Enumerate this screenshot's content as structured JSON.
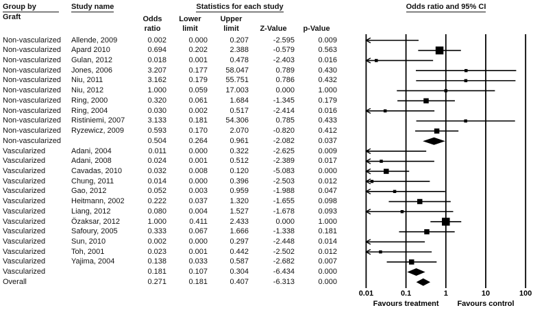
{
  "header": {
    "group_by": "Group by",
    "group_by_sub": "Graft",
    "study_name": "Study name",
    "stats_title": "Statistics for each study",
    "plot_title": "Odds ratio and 95% CI",
    "col_odds_l1": "Odds",
    "col_odds_l2": "ratio",
    "col_lower_l1": "Lower",
    "col_lower_l2": "limit",
    "col_upper_l1": "Upper",
    "col_upper_l2": "limit",
    "col_z": "Z-Value",
    "col_p": "p-Value"
  },
  "chart_data": {
    "type": "forest",
    "x_scale": "log",
    "x_ticks": [
      0.01,
      0.1,
      1,
      10,
      100
    ],
    "x_tick_labels": [
      "0.01",
      "0.1",
      "1",
      "10",
      "100"
    ],
    "xlim": [
      0.01,
      100
    ],
    "favours_left": "Favours treatment",
    "favours_right": "Favours control",
    "marker_color": "#000000",
    "rows": [
      {
        "group": "Non-vascularized",
        "study": "Allende, 2009",
        "odds_ratio": "0.002",
        "lower_limit": "0.000",
        "upper_limit": "0.207",
        "z_value": "-2.595",
        "p_value": "0.009",
        "kind": "study",
        "marker": "none"
      },
      {
        "group": "Non-vascularized",
        "study": "Apard 2010",
        "odds_ratio": "0.694",
        "lower_limit": "0.202",
        "upper_limit": "2.388",
        "z_value": "-0.579",
        "p_value": "0.563",
        "kind": "study",
        "marker": "large"
      },
      {
        "group": "Non-vascularized",
        "study": "Gulan, 2012",
        "odds_ratio": "0.018",
        "lower_limit": "0.001",
        "upper_limit": "0.478",
        "z_value": "-2.403",
        "p_value": "0.016",
        "kind": "study",
        "marker": "small"
      },
      {
        "group": "Non-vascularized",
        "study": "Jones, 2006",
        "odds_ratio": "3.207",
        "lower_limit": "0.177",
        "upper_limit": "58.047",
        "z_value": "0.789",
        "p_value": "0.430",
        "kind": "study",
        "marker": "small"
      },
      {
        "group": "Non-vascularized",
        "study": "Niu, 2011",
        "odds_ratio": "3.162",
        "lower_limit": "0.179",
        "upper_limit": "55.751",
        "z_value": "0.786",
        "p_value": "0.432",
        "kind": "study",
        "marker": "small"
      },
      {
        "group": "Non-vascularized",
        "study": "Niu, 2012",
        "odds_ratio": "1.000",
        "lower_limit": "0.059",
        "upper_limit": "17.003",
        "z_value": "0.000",
        "p_value": "1.000",
        "kind": "study",
        "marker": "small"
      },
      {
        "group": "Non-vascularized",
        "study": "Ring, 2000",
        "odds_ratio": "0.320",
        "lower_limit": "0.061",
        "upper_limit": "1.684",
        "z_value": "-1.345",
        "p_value": "0.179",
        "kind": "study",
        "marker": "medium"
      },
      {
        "group": "Non-vascularized",
        "study": "Ring, 2004",
        "odds_ratio": "0.030",
        "lower_limit": "0.002",
        "upper_limit": "0.517",
        "z_value": "-2.414",
        "p_value": "0.016",
        "kind": "study",
        "marker": "small"
      },
      {
        "group": "Non-vascularized",
        "study": "Ristiniemi, 2007",
        "odds_ratio": "3.133",
        "lower_limit": "0.181",
        "upper_limit": "54.306",
        "z_value": "0.785",
        "p_value": "0.433",
        "kind": "study",
        "marker": "small"
      },
      {
        "group": "Non-vascularized",
        "study": "Ryzewicz, 2009",
        "odds_ratio": "0.593",
        "lower_limit": "0.170",
        "upper_limit": "2.070",
        "z_value": "-0.820",
        "p_value": "0.412",
        "kind": "study",
        "marker": "medium"
      },
      {
        "group": "Non-vascularized",
        "study": "",
        "odds_ratio": "0.504",
        "lower_limit": "0.264",
        "upper_limit": "0.961",
        "z_value": "-2.082",
        "p_value": "0.037",
        "kind": "subtotal",
        "marker": "diamond"
      },
      {
        "group": "Vascularized",
        "study": "Adani, 2004",
        "odds_ratio": "0.011",
        "lower_limit": "0.000",
        "upper_limit": "0.322",
        "z_value": "-2.625",
        "p_value": "0.009",
        "kind": "study",
        "marker": "tiny"
      },
      {
        "group": "Vascularized",
        "study": "Adani, 2008",
        "odds_ratio": "0.024",
        "lower_limit": "0.001",
        "upper_limit": "0.512",
        "z_value": "-2.389",
        "p_value": "0.017",
        "kind": "study",
        "marker": "small"
      },
      {
        "group": "Vascularized",
        "study": "Cavadas, 2010",
        "odds_ratio": "0.032",
        "lower_limit": "0.008",
        "upper_limit": "0.120",
        "z_value": "-5.083",
        "p_value": "0.000",
        "kind": "study",
        "marker": "medium"
      },
      {
        "group": "Vascularized",
        "study": "Chung, 2011",
        "odds_ratio": "0.014",
        "lower_limit": "0.000",
        "upper_limit": "0.396",
        "z_value": "-2.503",
        "p_value": "0.012",
        "kind": "study",
        "marker": "small"
      },
      {
        "group": "Vascularized",
        "study": "Gao, 2012",
        "odds_ratio": "0.052",
        "lower_limit": "0.003",
        "upper_limit": "0.959",
        "z_value": "-1.988",
        "p_value": "0.047",
        "kind": "study",
        "marker": "small"
      },
      {
        "group": "Vascularized",
        "study": "Heitmann, 2002",
        "odds_ratio": "0.222",
        "lower_limit": "0.037",
        "upper_limit": "1.320",
        "z_value": "-1.655",
        "p_value": "0.098",
        "kind": "study",
        "marker": "medium"
      },
      {
        "group": "Vascularized",
        "study": "Liang, 2012",
        "odds_ratio": "0.080",
        "lower_limit": "0.004",
        "upper_limit": "1.527",
        "z_value": "-1.678",
        "p_value": "0.093",
        "kind": "study",
        "marker": "small"
      },
      {
        "group": "Vascularized",
        "study": "Özaksar, 2012",
        "odds_ratio": "1.000",
        "lower_limit": "0.411",
        "upper_limit": "2.433",
        "z_value": "0.000",
        "p_value": "1.000",
        "kind": "study",
        "marker": "large"
      },
      {
        "group": "Vascularized",
        "study": "Safoury, 2005",
        "odds_ratio": "0.333",
        "lower_limit": "0.067",
        "upper_limit": "1.666",
        "z_value": "-1.338",
        "p_value": "0.181",
        "kind": "study",
        "marker": "medium"
      },
      {
        "group": "Vascularized",
        "study": "Sun, 2010",
        "odds_ratio": "0.002",
        "lower_limit": "0.000",
        "upper_limit": "0.297",
        "z_value": "-2.448",
        "p_value": "0.014",
        "kind": "study",
        "marker": "none"
      },
      {
        "group": "Vascularized",
        "study": "Toh, 2001",
        "odds_ratio": "0.023",
        "lower_limit": "0.001",
        "upper_limit": "0.442",
        "z_value": "-2.502",
        "p_value": "0.012",
        "kind": "study",
        "marker": "small"
      },
      {
        "group": "Vascularized",
        "study": "Yajima, 2004",
        "odds_ratio": "0.138",
        "lower_limit": "0.033",
        "upper_limit": "0.587",
        "z_value": "-2.682",
        "p_value": "0.007",
        "kind": "study",
        "marker": "medium"
      },
      {
        "group": "Vascularized",
        "study": "",
        "odds_ratio": "0.181",
        "lower_limit": "0.107",
        "upper_limit": "0.304",
        "z_value": "-6.434",
        "p_value": "0.000",
        "kind": "subtotal",
        "marker": "diamond"
      },
      {
        "group": "Overall",
        "study": "",
        "odds_ratio": "0.271",
        "lower_limit": "0.181",
        "upper_limit": "0.407",
        "z_value": "-6.313",
        "p_value": "0.000",
        "kind": "overall",
        "marker": "diamond"
      }
    ]
  }
}
